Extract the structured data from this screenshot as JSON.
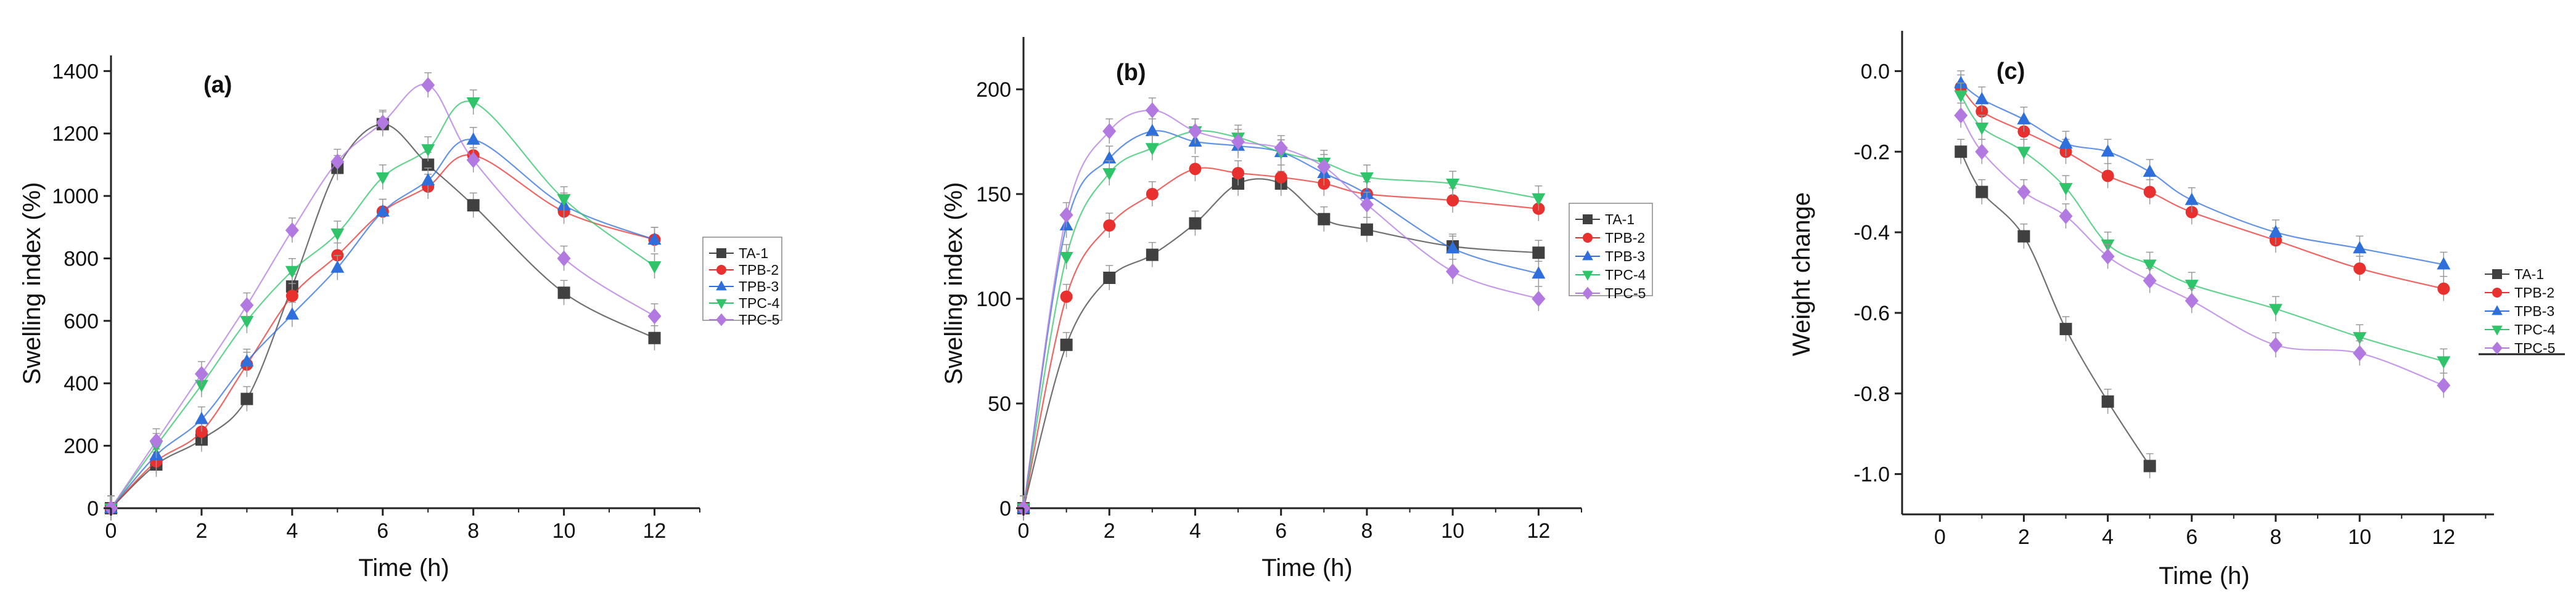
{
  "series_colors": {
    "TA-1": "#404040",
    "TPB-2": "#e8312f",
    "TPB-3": "#2f6fdc",
    "TPC-4": "#2fc46a",
    "TPC-5": "#b27ae0"
  },
  "series_markers": {
    "TA-1": "square",
    "TPB-2": "circle",
    "TPB-3": "triangle-up",
    "TPC-4": "triangle-down",
    "TPC-5": "diamond"
  },
  "chart_data": [
    {
      "type": "line",
      "panel_label": "(a)",
      "xlabel": "Time (h)",
      "ylabel": "Swelling index (%)",
      "xlim": [
        0,
        13
      ],
      "ylim": [
        0,
        1450
      ],
      "xticks": [
        "0",
        "2",
        "4",
        "6",
        "8",
        "10",
        "12"
      ],
      "yticks": [
        "0",
        "200",
        "400",
        "600",
        "800",
        "1000",
        "1200",
        "1400"
      ],
      "legend_position": "right",
      "series": [
        {
          "name": "TA-1",
          "x": [
            0,
            1,
            2,
            3,
            4,
            5,
            6,
            7,
            8,
            10,
            12
          ],
          "values": [
            0,
            140,
            220,
            350,
            710,
            1090,
            1230,
            1100,
            970,
            690,
            545
          ]
        },
        {
          "name": "TPB-2",
          "x": [
            0,
            1,
            2,
            3,
            4,
            5,
            6,
            7,
            8,
            10,
            12
          ],
          "values": [
            0,
            150,
            245,
            460,
            680,
            810,
            950,
            1030,
            1130,
            950,
            860
          ]
        },
        {
          "name": "TPB-3",
          "x": [
            0,
            1,
            2,
            3,
            4,
            5,
            6,
            7,
            8,
            10,
            12
          ],
          "values": [
            0,
            170,
            285,
            470,
            620,
            770,
            950,
            1050,
            1180,
            970,
            860
          ]
        },
        {
          "name": "TPC-4",
          "x": [
            0,
            1,
            2,
            3,
            4,
            5,
            6,
            7,
            8,
            10,
            12
          ],
          "values": [
            0,
            200,
            395,
            600,
            760,
            880,
            1060,
            1150,
            1300,
            990,
            775
          ]
        },
        {
          "name": "TPC-5",
          "x": [
            0,
            1,
            2,
            3,
            4,
            5,
            6,
            7,
            8,
            10,
            12
          ],
          "values": [
            0,
            215,
            430,
            650,
            890,
            1110,
            1235,
            1355,
            1115,
            800,
            615
          ]
        }
      ]
    },
    {
      "type": "line",
      "panel_label": "(b)",
      "xlabel": "Time (h)",
      "ylabel": "Swelling index (%)",
      "xlim": [
        0,
        13
      ],
      "ylim": [
        0,
        225
      ],
      "xticks": [
        "0",
        "2",
        "4",
        "6",
        "8",
        "10",
        "12"
      ],
      "yticks": [
        "0",
        "50",
        "100",
        "150",
        "200"
      ],
      "legend_position": "right",
      "series": [
        {
          "name": "TA-1",
          "x": [
            0,
            1,
            2,
            3,
            4,
            5,
            6,
            7,
            8,
            10,
            12
          ],
          "values": [
            0,
            78,
            110,
            121,
            136,
            155,
            155,
            138,
            133,
            125,
            122
          ]
        },
        {
          "name": "TPB-2",
          "x": [
            0,
            1,
            2,
            3,
            4,
            5,
            6,
            7,
            8,
            10,
            12
          ],
          "values": [
            0,
            101,
            135,
            150,
            162,
            160,
            158,
            155,
            150,
            147,
            143
          ]
        },
        {
          "name": "TPB-3",
          "x": [
            0,
            1,
            2,
            3,
            4,
            5,
            6,
            7,
            8,
            10,
            12
          ],
          "values": [
            0,
            135,
            167,
            180,
            175,
            173,
            170,
            160,
            150,
            124,
            112
          ]
        },
        {
          "name": "TPC-4",
          "x": [
            0,
            1,
            2,
            3,
            4,
            5,
            6,
            7,
            8,
            10,
            12
          ],
          "values": [
            0,
            120,
            160,
            172,
            180,
            177,
            170,
            165,
            158,
            155,
            148
          ]
        },
        {
          "name": "TPC-5",
          "x": [
            0,
            1,
            2,
            3,
            4,
            5,
            6,
            7,
            8,
            10,
            12
          ],
          "values": [
            0,
            140,
            180,
            190,
            180,
            175,
            172,
            163,
            145,
            113,
            100
          ]
        }
      ]
    },
    {
      "type": "line",
      "panel_label": "(c)",
      "xlabel": "Time (h)",
      "ylabel": "Weight change",
      "xlim": [
        -0.9,
        13.2
      ],
      "ylim": [
        -1.1,
        0.1
      ],
      "xticks": [
        "0",
        "2",
        "4",
        "6",
        "8",
        "10",
        "12"
      ],
      "yticks": [
        "0.0",
        "-0.2",
        "-0.4",
        "-0.6",
        "-0.8",
        "-1.0"
      ],
      "legend_position": "right",
      "series": [
        {
          "name": "TA-1",
          "x": [
            0.5,
            1,
            2,
            3,
            4,
            5
          ],
          "values": [
            -0.2,
            -0.3,
            -0.41,
            -0.64,
            -0.82,
            -0.98
          ]
        },
        {
          "name": "TPB-2",
          "x": [
            0.5,
            1,
            2,
            3,
            4,
            5,
            6,
            8,
            10,
            12
          ],
          "values": [
            -0.04,
            -0.1,
            -0.15,
            -0.2,
            -0.26,
            -0.3,
            -0.35,
            -0.42,
            -0.49,
            -0.54
          ]
        },
        {
          "name": "TPB-3",
          "x": [
            0.5,
            1,
            2,
            3,
            4,
            5,
            6,
            8,
            10,
            12
          ],
          "values": [
            -0.03,
            -0.07,
            -0.12,
            -0.18,
            -0.2,
            -0.25,
            -0.32,
            -0.4,
            -0.44,
            -0.48
          ]
        },
        {
          "name": "TPC-4",
          "x": [
            0.5,
            1,
            2,
            3,
            4,
            5,
            6,
            8,
            10,
            12
          ],
          "values": [
            -0.06,
            -0.14,
            -0.2,
            -0.29,
            -0.43,
            -0.48,
            -0.53,
            -0.59,
            -0.66,
            -0.72
          ]
        },
        {
          "name": "TPC-5",
          "x": [
            0.5,
            1,
            2,
            3,
            4,
            5,
            6,
            8,
            10,
            12
          ],
          "values": [
            -0.11,
            -0.2,
            -0.3,
            -0.36,
            -0.46,
            -0.52,
            -0.57,
            -0.68,
            -0.7,
            -0.78
          ]
        }
      ]
    }
  ]
}
